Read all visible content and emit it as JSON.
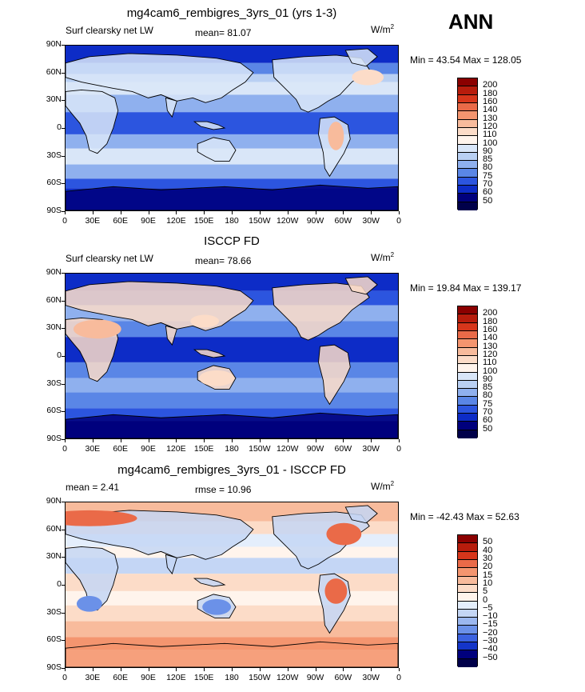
{
  "season": "ANN",
  "panels": [
    {
      "title": "mg4cam6_rembigres_3yrs_01 (yrs 1-3)",
      "left_label": "Surf clearsky net LW",
      "center_label": "mean=  81.07",
      "units": "W/m",
      "units_sup": "2",
      "minmax": "Min =  43.54 Max = 128.05",
      "levels": [
        "200",
        "180",
        "160",
        "140",
        "130",
        "120",
        "110",
        "100",
        "90",
        "85",
        "80",
        "75",
        "70",
        "60",
        "50"
      ]
    },
    {
      "title": "ISCCP FD",
      "left_label": "Surf clearsky net LW",
      "center_label": "mean=  78.66",
      "units": "W/m",
      "units_sup": "2",
      "minmax": "Min =  19.84 Max = 139.17",
      "levels": [
        "200",
        "180",
        "160",
        "140",
        "130",
        "120",
        "110",
        "100",
        "90",
        "85",
        "80",
        "75",
        "70",
        "60",
        "50"
      ]
    },
    {
      "title": "mg4cam6_rembigres_3yrs_01 - ISCCP FD",
      "left_label": "mean =   2.41",
      "center_label": "rmse =  10.96",
      "units": "W/m",
      "units_sup": "2",
      "minmax": "Min = -42.43 Max =  52.63",
      "levels": [
        "50",
        "40",
        "30",
        "20",
        "15",
        "10",
        "5",
        "0",
        "−5",
        "−10",
        "−15",
        "−20",
        "−30",
        "−40",
        "−50"
      ]
    }
  ],
  "lat_ticks": [
    "90N",
    "60N",
    "30N",
    "0",
    "30S",
    "60S",
    "90S"
  ],
  "lon_ticks": [
    "0",
    "30E",
    "60E",
    "90E",
    "120E",
    "150E",
    "180",
    "150W",
    "120W",
    "90W",
    "60W",
    "30W",
    "0"
  ],
  "colors": {
    "abs_scale": [
      "#8b0000",
      "#b71c0c",
      "#d7361b",
      "#ea6a48",
      "#f4956f",
      "#f8bb9c",
      "#fcdcc8",
      "#fff4ec",
      "#d9e6f8",
      "#b9d0f3",
      "#8fb0ee",
      "#5a86e6",
      "#2c55df",
      "#0d2cc7",
      "#00007d",
      "#00004a"
    ],
    "diff_scale": [
      "#8b0000",
      "#b71c0c",
      "#d7361b",
      "#ea6a48",
      "#f4956f",
      "#f8bb9c",
      "#fcdcc8",
      "#fff4ec",
      "#e4eefc",
      "#c4d6f5",
      "#9bb7ef",
      "#6b91e8",
      "#3b62e0",
      "#1435c9",
      "#00007d",
      "#00004a"
    ]
  }
}
